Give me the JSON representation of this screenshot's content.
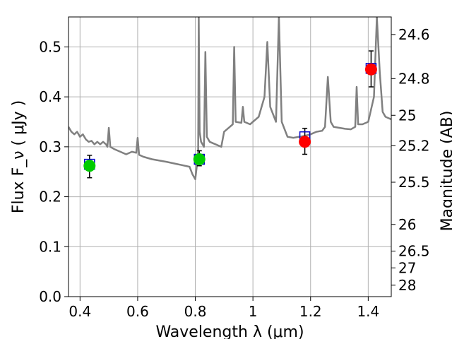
{
  "chart_data": {
    "type": "scatter",
    "title": "",
    "xlabel": "Wavelength  λ (μm)",
    "ylabel": "Flux  F_ν  ( μJy )",
    "y2label": "Magnitude (AB)",
    "xlim": [
      0.36,
      1.48
    ],
    "ylim": [
      0.0,
      0.56
    ],
    "grid": true,
    "x_ticks": [
      {
        "value": 0.4,
        "label": "0.4"
      },
      {
        "value": 0.6,
        "label": "0.6"
      },
      {
        "value": 0.8,
        "label": "0.8"
      },
      {
        "value": 1.0,
        "label": "1"
      },
      {
        "value": 1.2,
        "label": "1.2"
      },
      {
        "value": 1.4,
        "label": "1.4"
      }
    ],
    "y_ticks": [
      {
        "value": 0.0,
        "label": "0.0"
      },
      {
        "value": 0.1,
        "label": "0.1"
      },
      {
        "value": 0.2,
        "label": "0.2"
      },
      {
        "value": 0.3,
        "label": "0.3"
      },
      {
        "value": 0.4,
        "label": "0.4"
      },
      {
        "value": 0.5,
        "label": "0.5"
      }
    ],
    "y2_ticks": [
      {
        "value": 24.6,
        "label": "24.6"
      },
      {
        "value": 24.8,
        "label": "24.8"
      },
      {
        "value": 25.0,
        "label": "25"
      },
      {
        "value": 25.2,
        "label": "25.2"
      },
      {
        "value": 25.5,
        "label": "25.5"
      },
      {
        "value": 26.0,
        "label": "26"
      },
      {
        "value": 26.5,
        "label": "26.5"
      },
      {
        "value": 27.0,
        "label": "27"
      },
      {
        "value": 28.0,
        "label": "28"
      }
    ],
    "sed_model": {
      "color": "#808080",
      "points": [
        [
          0.36,
          0.34
        ],
        [
          0.37,
          0.33
        ],
        [
          0.38,
          0.325
        ],
        [
          0.39,
          0.33
        ],
        [
          0.4,
          0.32
        ],
        [
          0.41,
          0.325
        ],
        [
          0.42,
          0.315
        ],
        [
          0.43,
          0.31
        ],
        [
          0.44,
          0.312
        ],
        [
          0.45,
          0.305
        ],
        [
          0.46,
          0.31
        ],
        [
          0.47,
          0.305
        ],
        [
          0.48,
          0.31
        ],
        [
          0.49,
          0.305
        ],
        [
          0.495,
          0.3
        ],
        [
          0.5,
          0.338
        ],
        [
          0.505,
          0.3
        ],
        [
          0.52,
          0.295
        ],
        [
          0.54,
          0.29
        ],
        [
          0.56,
          0.285
        ],
        [
          0.58,
          0.29
        ],
        [
          0.595,
          0.288
        ],
        [
          0.6,
          0.318
        ],
        [
          0.605,
          0.284
        ],
        [
          0.62,
          0.28
        ],
        [
          0.65,
          0.275
        ],
        [
          0.7,
          0.27
        ],
        [
          0.74,
          0.265
        ],
        [
          0.78,
          0.26
        ],
        [
          0.79,
          0.245
        ],
        [
          0.8,
          0.235
        ],
        [
          0.805,
          0.26
        ],
        [
          0.81,
          0.29
        ],
        [
          0.812,
          0.56
        ],
        [
          0.815,
          0.33
        ],
        [
          0.82,
          0.31
        ],
        [
          0.83,
          0.3
        ],
        [
          0.835,
          0.49
        ],
        [
          0.84,
          0.32
        ],
        [
          0.85,
          0.31
        ],
        [
          0.87,
          0.305
        ],
        [
          0.89,
          0.3
        ],
        [
          0.9,
          0.33
        ],
        [
          0.92,
          0.34
        ],
        [
          0.93,
          0.345
        ],
        [
          0.935,
          0.5
        ],
        [
          0.94,
          0.35
        ],
        [
          0.96,
          0.348
        ],
        [
          0.965,
          0.38
        ],
        [
          0.97,
          0.35
        ],
        [
          0.99,
          0.345
        ],
        [
          1.0,
          0.35
        ],
        [
          1.02,
          0.36
        ],
        [
          1.04,
          0.4
        ],
        [
          1.05,
          0.51
        ],
        [
          1.06,
          0.38
        ],
        [
          1.08,
          0.35
        ],
        [
          1.09,
          0.56
        ],
        [
          1.1,
          0.35
        ],
        [
          1.12,
          0.32
        ],
        [
          1.14,
          0.318
        ],
        [
          1.16,
          0.32
        ],
        [
          1.18,
          0.322
        ],
        [
          1.2,
          0.325
        ],
        [
          1.22,
          0.33
        ],
        [
          1.24,
          0.332
        ],
        [
          1.25,
          0.34
        ],
        [
          1.26,
          0.44
        ],
        [
          1.27,
          0.35
        ],
        [
          1.28,
          0.34
        ],
        [
          1.3,
          0.338
        ],
        [
          1.32,
          0.336
        ],
        [
          1.34,
          0.335
        ],
        [
          1.355,
          0.34
        ],
        [
          1.36,
          0.42
        ],
        [
          1.365,
          0.345
        ],
        [
          1.38,
          0.345
        ],
        [
          1.4,
          0.35
        ],
        [
          1.42,
          0.4
        ],
        [
          1.43,
          0.56
        ],
        [
          1.44,
          0.45
        ],
        [
          1.45,
          0.37
        ],
        [
          1.46,
          0.36
        ],
        [
          1.48,
          0.355
        ]
      ]
    },
    "series": [
      {
        "marker": "circle",
        "points": [
          {
            "x": 0.433,
            "y": 0.262,
            "color": "#00cc00"
          },
          {
            "x": 0.814,
            "y": 0.275,
            "color": "#00cc00"
          },
          {
            "x": 1.18,
            "y": 0.31,
            "color": "#ff0000"
          },
          {
            "x": 1.41,
            "y": 0.455,
            "color": "#ff0000"
          }
        ]
      },
      {
        "marker": "square",
        "color": "#0000cc",
        "points": [
          {
            "x": 0.433,
            "y": 0.265
          },
          {
            "x": 0.814,
            "y": 0.275
          },
          {
            "x": 1.18,
            "y": 0.32
          },
          {
            "x": 1.41,
            "y": 0.457
          }
        ]
      }
    ],
    "error_bars": [
      {
        "x": 0.433,
        "low": 0.238,
        "high": 0.283
      },
      {
        "x": 0.814,
        "low": 0.262,
        "high": 0.292
      },
      {
        "x": 1.18,
        "low": 0.285,
        "high": 0.337
      },
      {
        "x": 1.41,
        "low": 0.42,
        "high": 0.492
      }
    ]
  }
}
